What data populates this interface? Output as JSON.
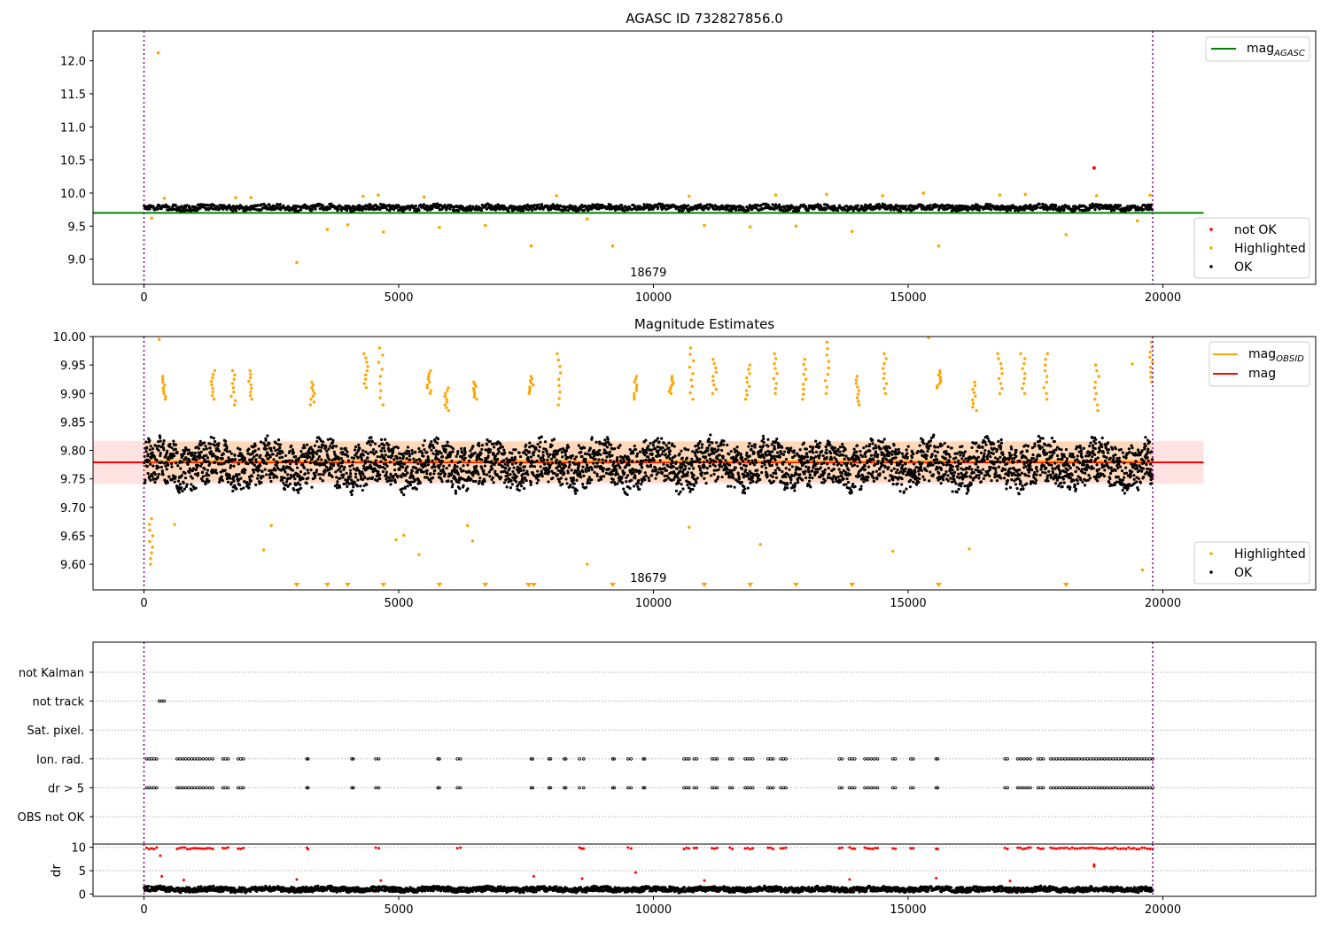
{
  "chart_data": [
    {
      "type": "scatter",
      "title": "AGASC ID 732827856.0",
      "xlabel": "",
      "ylabel": "",
      "xlim": [
        -1000,
        23000
      ],
      "ylim": [
        8.62,
        12.45
      ],
      "x_ticks": [
        0,
        5000,
        10000,
        15000,
        20000
      ],
      "y_ticks": [
        9.0,
        9.5,
        10.0,
        10.5,
        11.0,
        11.5,
        12.0
      ],
      "obsid_label": "18679",
      "obsid_label_x": 9900,
      "obsid_boundaries": [
        0,
        19800
      ],
      "legend_placement": "upper-right",
      "legend_lines": [
        {
          "name": "magAGASC",
          "base": "mag",
          "sub": "AGASC",
          "color": "#008000"
        }
      ],
      "legend_points_placement": "lower-right",
      "legend_points": [
        {
          "name": "not OK",
          "color": "#ff0000"
        },
        {
          "name": "Highlighted",
          "color": "#ffa500"
        },
        {
          "name": "OK",
          "color": "#000000"
        }
      ],
      "mag_agasc": {
        "value": 9.7,
        "x_range": [
          -1000,
          20800
        ]
      },
      "ok_band": {
        "center": 9.78,
        "half_width": 0.04,
        "x_range": [
          0,
          19800
        ]
      },
      "highlighted_points": [
        {
          "x": 280,
          "y": 12.12
        },
        {
          "x": 150,
          "y": 9.62
        },
        {
          "x": 3000,
          "y": 8.95
        },
        {
          "x": 3600,
          "y": 9.45
        },
        {
          "x": 4000,
          "y": 9.52
        },
        {
          "x": 4700,
          "y": 9.41
        },
        {
          "x": 5800,
          "y": 9.48
        },
        {
          "x": 6700,
          "y": 9.51
        },
        {
          "x": 7600,
          "y": 9.2
        },
        {
          "x": 8700,
          "y": 9.61
        },
        {
          "x": 9200,
          "y": 9.2
        },
        {
          "x": 11000,
          "y": 9.51
        },
        {
          "x": 11900,
          "y": 9.49
        },
        {
          "x": 12800,
          "y": 9.5
        },
        {
          "x": 13900,
          "y": 9.42
        },
        {
          "x": 15600,
          "y": 9.2
        },
        {
          "x": 18100,
          "y": 9.37
        },
        {
          "x": 19500,
          "y": 9.58
        },
        {
          "x": 400,
          "y": 9.92
        },
        {
          "x": 1800,
          "y": 9.93
        },
        {
          "x": 2100,
          "y": 9.93
        },
        {
          "x": 4300,
          "y": 9.95
        },
        {
          "x": 4600,
          "y": 9.97
        },
        {
          "x": 5500,
          "y": 9.94
        },
        {
          "x": 8100,
          "y": 9.96
        },
        {
          "x": 10700,
          "y": 9.95
        },
        {
          "x": 12400,
          "y": 9.97
        },
        {
          "x": 13400,
          "y": 9.98
        },
        {
          "x": 14500,
          "y": 9.96
        },
        {
          "x": 15300,
          "y": 10.0
        },
        {
          "x": 16800,
          "y": 9.97
        },
        {
          "x": 17300,
          "y": 9.98
        },
        {
          "x": 18700,
          "y": 9.96
        },
        {
          "x": 19750,
          "y": 9.97
        }
      ],
      "not_ok_points": [
        {
          "x": 18650,
          "y": 10.38
        }
      ],
      "ok_series": {
        "x_range": [
          0,
          19800
        ],
        "center": 9.78,
        "spread": 0.04,
        "count": 1800
      }
    },
    {
      "type": "scatter",
      "title": "Magnitude Estimates",
      "xlabel": "",
      "ylabel": "",
      "xlim": [
        -1000,
        23000
      ],
      "ylim": [
        9.555,
        10.0
      ],
      "x_ticks": [
        0,
        5000,
        10000,
        15000,
        20000
      ],
      "y_ticks": [
        9.6,
        9.65,
        9.7,
        9.75,
        9.8,
        9.85,
        9.9,
        9.95,
        10.0
      ],
      "obsid_label": "18679",
      "obsid_label_x": 9900,
      "obsid_boundaries": [
        0,
        19800
      ],
      "legend_placement": "upper-right",
      "legend_lines": [
        {
          "name": "magOBSID",
          "base": "mag",
          "sub": "OBSID",
          "color": "#ffa500"
        },
        {
          "name": "mag",
          "base": "mag",
          "sub": "",
          "color": "#ff0000"
        }
      ],
      "legend_points_placement": "lower-right",
      "legend_points": [
        {
          "name": "Highlighted",
          "color": "#ffa500"
        },
        {
          "name": "OK",
          "color": "#000000"
        }
      ],
      "mag_value": 9.779,
      "mag_obsid": 9.781,
      "mag_band": {
        "low": 9.741,
        "high": 9.817,
        "x_range": [
          -1000,
          20800
        ]
      },
      "obsid_band": {
        "low": 9.745,
        "high": 9.815,
        "x_range": [
          0,
          19800
        ]
      },
      "ok_series": {
        "x_range": [
          0,
          19800
        ],
        "center": 9.775,
        "spread": 0.035,
        "count": 4200
      },
      "highlighted_clusters": [
        {
          "x": 150,
          "low": 9.6,
          "high": 9.68
        },
        {
          "x": 400,
          "low": 9.89,
          "high": 9.93
        },
        {
          "x": 1350,
          "low": 9.89,
          "high": 9.94
        },
        {
          "x": 1750,
          "low": 9.88,
          "high": 9.94
        },
        {
          "x": 2100,
          "low": 9.89,
          "high": 9.94
        },
        {
          "x": 3300,
          "low": 9.88,
          "high": 9.92
        },
        {
          "x": 4350,
          "low": 9.91,
          "high": 9.97
        },
        {
          "x": 4650,
          "low": 9.88,
          "high": 9.98
        },
        {
          "x": 5600,
          "low": 9.9,
          "high": 9.94
        },
        {
          "x": 5950,
          "low": 9.87,
          "high": 9.91
        },
        {
          "x": 6500,
          "low": 9.89,
          "high": 9.92
        },
        {
          "x": 7600,
          "low": 9.9,
          "high": 9.93
        },
        {
          "x": 8150,
          "low": 9.88,
          "high": 9.97
        },
        {
          "x": 9650,
          "low": 9.89,
          "high": 9.93
        },
        {
          "x": 10350,
          "low": 9.9,
          "high": 9.93
        },
        {
          "x": 10750,
          "low": 9.89,
          "high": 9.98
        },
        {
          "x": 11200,
          "low": 9.9,
          "high": 9.96
        },
        {
          "x": 11850,
          "low": 9.89,
          "high": 9.95
        },
        {
          "x": 12400,
          "low": 9.9,
          "high": 9.97
        },
        {
          "x": 12950,
          "low": 9.89,
          "high": 9.96
        },
        {
          "x": 13400,
          "low": 9.9,
          "high": 9.99
        },
        {
          "x": 14000,
          "low": 9.88,
          "high": 9.93
        },
        {
          "x": 14550,
          "low": 9.9,
          "high": 9.97
        },
        {
          "x": 15600,
          "low": 9.91,
          "high": 9.94
        },
        {
          "x": 16300,
          "low": 9.87,
          "high": 9.92
        },
        {
          "x": 16800,
          "low": 9.9,
          "high": 9.97
        },
        {
          "x": 17250,
          "low": 9.9,
          "high": 9.97
        },
        {
          "x": 17700,
          "low": 9.89,
          "high": 9.97
        },
        {
          "x": 18700,
          "low": 9.87,
          "high": 9.95
        },
        {
          "x": 19750,
          "low": 9.92,
          "high": 9.99
        }
      ],
      "highlighted_points": [
        {
          "x": 300,
          "y": 9.995
        },
        {
          "x": 600,
          "y": 9.67
        },
        {
          "x": 2350,
          "y": 9.625
        },
        {
          "x": 2500,
          "y": 9.668
        },
        {
          "x": 4950,
          "y": 9.643
        },
        {
          "x": 5100,
          "y": 9.651
        },
        {
          "x": 5400,
          "y": 9.617
        },
        {
          "x": 6350,
          "y": 9.668
        },
        {
          "x": 6450,
          "y": 9.641
        },
        {
          "x": 8700,
          "y": 9.6
        },
        {
          "x": 10700,
          "y": 9.665
        },
        {
          "x": 12100,
          "y": 9.635
        },
        {
          "x": 14700,
          "y": 9.623
        },
        {
          "x": 15400,
          "y": 9.998
        },
        {
          "x": 16200,
          "y": 9.627
        },
        {
          "x": 19400,
          "y": 9.952
        },
        {
          "x": 19600,
          "y": 9.59
        }
      ],
      "below_range_markers_x": [
        3000,
        3600,
        4000,
        4700,
        5800,
        6700,
        7550,
        7650,
        9200,
        11000,
        11900,
        12800,
        13900,
        15600,
        18100
      ]
    },
    {
      "type": "scatter",
      "title": "",
      "xlabel": "",
      "ylabel": "",
      "xlim": [
        -1000,
        23000
      ],
      "categories": [
        "not Kalman",
        "not track",
        "Sat. pixel.",
        "Ion. rad.",
        "dr > 5",
        "OBS not OK"
      ],
      "obsid_boundaries": [
        0,
        19800
      ],
      "flag_segments": {
        "not track": [
          [
            300,
            400
          ]
        ],
        "Ion. rad.": [
          [
            50,
            250
          ],
          [
            650,
            1050
          ],
          [
            1100,
            1350
          ],
          [
            1550,
            1650
          ],
          [
            1850,
            1950
          ],
          [
            3200,
            3220
          ],
          [
            4080,
            4110
          ],
          [
            4550,
            4610
          ],
          [
            5770,
            5800
          ],
          [
            6150,
            6210
          ],
          [
            7600,
            7630
          ],
          [
            7950,
            7980
          ],
          [
            8250,
            8280
          ],
          [
            8550,
            8630
          ],
          [
            9200,
            9230
          ],
          [
            9500,
            9560
          ],
          [
            9800,
            9830
          ],
          [
            10600,
            10700
          ],
          [
            10800,
            10850
          ],
          [
            11150,
            11250
          ],
          [
            11500,
            11550
          ],
          [
            11800,
            11950
          ],
          [
            12250,
            12350
          ],
          [
            12500,
            12600
          ],
          [
            13650,
            13700
          ],
          [
            13850,
            13950
          ],
          [
            14150,
            14400
          ],
          [
            14700,
            14750
          ],
          [
            15050,
            15100
          ],
          [
            15550,
            15580
          ],
          [
            16900,
            16950
          ],
          [
            17150,
            17400
          ],
          [
            17550,
            17650
          ],
          [
            17800,
            19800
          ]
        ],
        "dr > 5": [
          [
            50,
            250
          ],
          [
            650,
            1050
          ],
          [
            1100,
            1350
          ],
          [
            1550,
            1650
          ],
          [
            1850,
            1950
          ],
          [
            3200,
            3220
          ],
          [
            4080,
            4110
          ],
          [
            4550,
            4610
          ],
          [
            5770,
            5800
          ],
          [
            6150,
            6210
          ],
          [
            7600,
            7630
          ],
          [
            7950,
            7980
          ],
          [
            8250,
            8280
          ],
          [
            8550,
            8630
          ],
          [
            9200,
            9230
          ],
          [
            9500,
            9560
          ],
          [
            9800,
            9830
          ],
          [
            10600,
            10700
          ],
          [
            10800,
            10850
          ],
          [
            11150,
            11250
          ],
          [
            11500,
            11550
          ],
          [
            11800,
            11950
          ],
          [
            12250,
            12350
          ],
          [
            12500,
            12600
          ],
          [
            13650,
            13700
          ],
          [
            13850,
            13950
          ],
          [
            14150,
            14400
          ],
          [
            14700,
            14750
          ],
          [
            15050,
            15100
          ],
          [
            15550,
            15580
          ],
          [
            16900,
            16950
          ],
          [
            17150,
            17400
          ],
          [
            17550,
            17650
          ],
          [
            17800,
            19800
          ]
        ]
      }
    },
    {
      "type": "scatter",
      "title": "",
      "xlabel": "",
      "ylabel": "dr",
      "xlim": [
        -1000,
        23000
      ],
      "ylim": [
        -0.5,
        10.7
      ],
      "x_ticks": [
        0,
        5000,
        10000,
        15000,
        20000
      ],
      "y_ticks": [
        0,
        5,
        10
      ],
      "obsid_boundaries": [
        0,
        19800
      ],
      "ok_series": {
        "x_range": [
          0,
          19800
        ],
        "center": 1.0,
        "spread": 0.5,
        "count": 2600
      },
      "red_points": [
        {
          "x": 320,
          "y": 8.2
        },
        {
          "x": 350,
          "y": 3.8
        },
        {
          "x": 9650,
          "y": 4.6
        },
        {
          "x": 7650,
          "y": 3.8
        },
        {
          "x": 15550,
          "y": 3.4
        },
        {
          "x": 18650,
          "y": 6.3
        },
        {
          "x": 18650,
          "y": 5.9
        },
        {
          "x": 3000,
          "y": 3.1
        },
        {
          "x": 11000,
          "y": 2.9
        },
        {
          "x": 13850,
          "y": 3.1
        },
        {
          "x": 4650,
          "y": 2.9
        },
        {
          "x": 17000,
          "y": 2.8
        },
        {
          "x": 780,
          "y": 3.0
        },
        {
          "x": 8600,
          "y": 3.3
        }
      ],
      "red_clusters_at_10": [
        [
          50,
          250
        ],
        [
          650,
          1050
        ],
        [
          1100,
          1350
        ],
        [
          1550,
          1650
        ],
        [
          1850,
          1950
        ],
        [
          3200,
          3220
        ],
        [
          4550,
          4610
        ],
        [
          6150,
          6210
        ],
        [
          8550,
          8630
        ],
        [
          9500,
          9560
        ],
        [
          10600,
          10700
        ],
        [
          10800,
          10850
        ],
        [
          11150,
          11250
        ],
        [
          11500,
          11550
        ],
        [
          11800,
          11950
        ],
        [
          12250,
          12350
        ],
        [
          12500,
          12600
        ],
        [
          13650,
          13700
        ],
        [
          13850,
          13950
        ],
        [
          14150,
          14400
        ],
        [
          14700,
          14750
        ],
        [
          15050,
          15100
        ],
        [
          15550,
          15580
        ],
        [
          16900,
          16950
        ],
        [
          17150,
          17400
        ],
        [
          17550,
          17650
        ],
        [
          17800,
          19800
        ]
      ]
    }
  ]
}
